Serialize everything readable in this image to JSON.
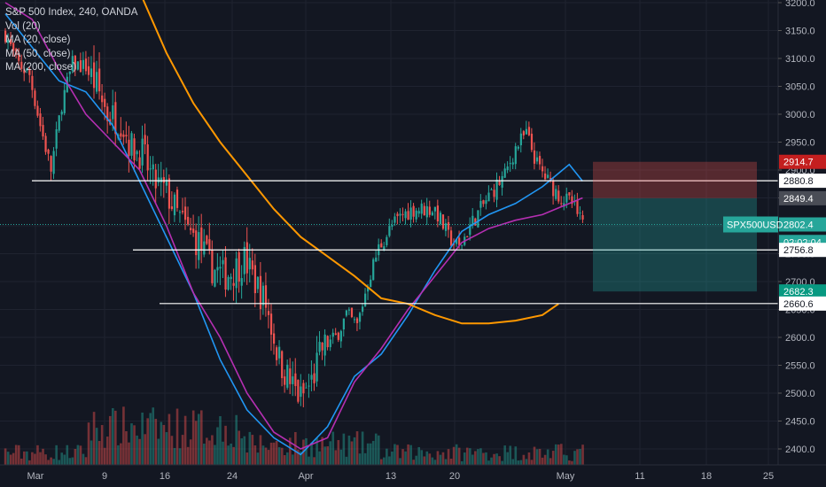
{
  "legend": {
    "title": "S&P 500 Index, 240, OANDA",
    "indicators": [
      "Vol (20)",
      "MA (20, close)",
      "MA (50, close)",
      "MA (200, close)"
    ]
  },
  "chart_data": {
    "type": "candlestick",
    "symbol": "S&P 500 Index",
    "interval": "240",
    "source": "OANDA",
    "ylim": [
      2375,
      3225
    ],
    "y_ticks": [
      2400,
      2450,
      2500,
      2550,
      2600,
      2650,
      2700,
      2750,
      2800,
      2850,
      2900,
      2950,
      3000,
      3050,
      3100,
      3150,
      3200
    ],
    "x_ticks": [
      "Mar",
      "9",
      "16",
      "24",
      "Apr",
      "13",
      "20",
      "May",
      "11",
      "18",
      "25"
    ],
    "close_path": [
      [
        0,
        3145
      ],
      [
        4,
        3095
      ],
      [
        9,
        3070
      ],
      [
        13,
        2980
      ],
      [
        17,
        2900
      ],
      [
        21,
        3020
      ],
      [
        25,
        3090
      ],
      [
        30,
        3085
      ],
      [
        34,
        3050
      ],
      [
        38,
        3000
      ],
      [
        43,
        2990
      ],
      [
        47,
        2940
      ],
      [
        51,
        2930
      ],
      [
        55,
        2880
      ],
      [
        60,
        2860
      ],
      [
        64,
        2820
      ],
      [
        68,
        2790
      ],
      [
        72,
        2770
      ],
      [
        76,
        2730
      ],
      [
        81,
        2710
      ],
      [
        85,
        2720
      ],
      [
        89,
        2740
      ],
      [
        93,
        2700
      ],
      [
        97,
        2660
      ],
      [
        102,
        2560
      ],
      [
        106,
        2520
      ],
      [
        110,
        2490
      ],
      [
        114,
        2520
      ],
      [
        118,
        2580
      ],
      [
        123,
        2600
      ],
      [
        127,
        2640
      ],
      [
        131,
        2620
      ],
      [
        135,
        2700
      ],
      [
        139,
        2760
      ],
      [
        144,
        2800
      ],
      [
        148,
        2820
      ],
      [
        152,
        2830
      ],
      [
        156,
        2830
      ],
      [
        160,
        2830
      ],
      [
        165,
        2780
      ],
      [
        169,
        2760
      ],
      [
        173,
        2800
      ],
      [
        177,
        2830
      ],
      [
        181,
        2860
      ],
      [
        186,
        2890
      ],
      [
        190,
        2940
      ],
      [
        194,
        2965
      ],
      [
        198,
        2910
      ],
      [
        202,
        2880
      ],
      [
        207,
        2850
      ],
      [
        211,
        2840
      ],
      [
        215,
        2800
      ]
    ],
    "moving_averages": [
      {
        "name": "MA (20, close)",
        "color": "#2196f3",
        "points": [
          [
            0,
            3180
          ],
          [
            10,
            3120
          ],
          [
            20,
            3060
          ],
          [
            30,
            3040
          ],
          [
            40,
            2980
          ],
          [
            50,
            2880
          ],
          [
            60,
            2780
          ],
          [
            70,
            2680
          ],
          [
            80,
            2560
          ],
          [
            90,
            2470
          ],
          [
            100,
            2420
          ],
          [
            110,
            2390
          ],
          [
            120,
            2440
          ],
          [
            130,
            2530
          ],
          [
            140,
            2570
          ],
          [
            150,
            2640
          ],
          [
            160,
            2720
          ],
          [
            170,
            2790
          ],
          [
            180,
            2820
          ],
          [
            190,
            2840
          ],
          [
            200,
            2870
          ],
          [
            210,
            2910
          ],
          [
            215,
            2880
          ]
        ]
      },
      {
        "name": "MA (50, close)",
        "color": "#b52fb2",
        "points": [
          [
            0,
            3200
          ],
          [
            10,
            3170
          ],
          [
            20,
            3080
          ],
          [
            30,
            3000
          ],
          [
            40,
            2950
          ],
          [
            50,
            2900
          ],
          [
            60,
            2800
          ],
          [
            70,
            2680
          ],
          [
            80,
            2600
          ],
          [
            90,
            2500
          ],
          [
            100,
            2430
          ],
          [
            110,
            2400
          ],
          [
            120,
            2420
          ],
          [
            130,
            2520
          ],
          [
            140,
            2580
          ],
          [
            150,
            2650
          ],
          [
            160,
            2710
          ],
          [
            170,
            2770
          ],
          [
            180,
            2795
          ],
          [
            190,
            2810
          ],
          [
            200,
            2820
          ],
          [
            210,
            2840
          ],
          [
            215,
            2850
          ]
        ]
      },
      {
        "name": "MA (200, close)",
        "color": "#ff9800",
        "points": [
          [
            50,
            3220
          ],
          [
            60,
            3110
          ],
          [
            70,
            3020
          ],
          [
            80,
            2950
          ],
          [
            90,
            2890
          ],
          [
            100,
            2830
          ],
          [
            110,
            2780
          ],
          [
            120,
            2745
          ],
          [
            130,
            2710
          ],
          [
            140,
            2670
          ],
          [
            150,
            2660
          ],
          [
            160,
            2640
          ],
          [
            170,
            2625
          ],
          [
            180,
            2625
          ],
          [
            190,
            2630
          ],
          [
            200,
            2640
          ],
          [
            206,
            2660
          ]
        ]
      }
    ],
    "horizontal_levels": [
      2880.8,
      2756.8,
      2660.6
    ],
    "last_price_line": 2802.4,
    "position": {
      "entry": 2849.4,
      "stop": 2914.7,
      "target": 2682.3
    },
    "price_labels": [
      {
        "text": "2914.7",
        "value": 2914.7,
        "bg": "#c41f1f",
        "fg": "#ffffff"
      },
      {
        "text": "2880.8",
        "value": 2880.8,
        "bg": "#ffffff",
        "fg": "#131722"
      },
      {
        "text": "2849.4",
        "value": 2849.4,
        "bg": "#4a4d56",
        "fg": "#ffffff"
      },
      {
        "text": "2802.4",
        "value": 2802.4,
        "bg": "#26a69a",
        "fg": "#ffffff"
      },
      {
        "text": "02:02:04",
        "value": 2771,
        "bg": "#26a69a",
        "fg": "#ffffff"
      },
      {
        "text": "2756.8",
        "value": 2756.8,
        "bg": "#ffffff",
        "fg": "#131722"
      },
      {
        "text": "2682.3",
        "value": 2682.3,
        "bg": "#089981",
        "fg": "#ffffff"
      },
      {
        "text": "2660.6",
        "value": 2660.6,
        "bg": "#ffffff",
        "fg": "#131722"
      }
    ],
    "symbol_tag": {
      "text": "SPX500USD",
      "bg": "#26a69a",
      "fg": "#ffffff"
    }
  },
  "colors": {
    "background": "#131722",
    "up": "#26a69a",
    "down": "#ef5350",
    "grid": "#1f2330",
    "axis_text": "#b2b5be"
  }
}
